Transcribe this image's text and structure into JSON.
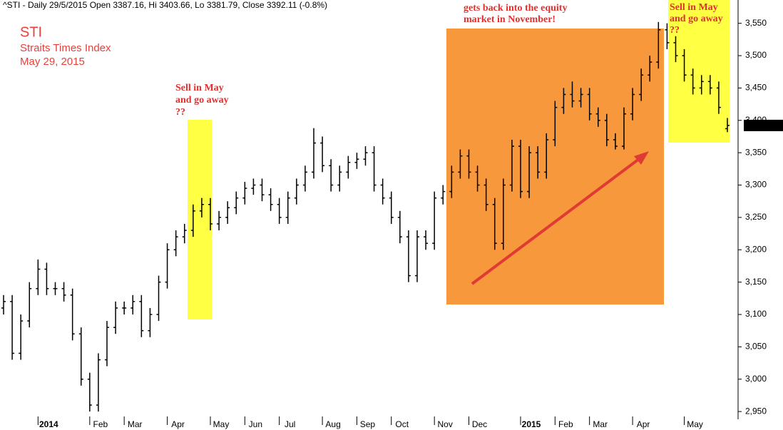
{
  "chart_data": {
    "type": "ohlc",
    "title": "^STI - Daily 29/5/2015 Open 3387.16, Hi 3403.66, Lo 3381.79, Close 3392.11 (-0.8%)",
    "symbol": "STI",
    "subtitle": "Straits Times Index",
    "date": "May 29, 2015",
    "annotations": [
      {
        "lines": [
          "Sell in May",
          "and go away",
          "??"
        ]
      },
      {
        "lines": [
          "gets back into the equity",
          "market in November!"
        ]
      },
      {
        "lines": [
          "Sell in May",
          "and go away",
          "??"
        ]
      }
    ],
    "last_value_label": "3,392.11",
    "color": "#000000",
    "categories": [
      null,
      null,
      null,
      null,
      "2014",
      null,
      null,
      null,
      null,
      null,
      "Feb",
      null,
      null,
      null,
      "Mar",
      null,
      null,
      null,
      null,
      "Apr",
      null,
      null,
      null,
      null,
      "May",
      null,
      null,
      null,
      "Jun",
      null,
      null,
      null,
      "Jul",
      null,
      null,
      null,
      null,
      "Aug",
      null,
      null,
      null,
      "Sep",
      null,
      null,
      null,
      "Oct",
      null,
      null,
      null,
      null,
      "Nov",
      null,
      null,
      null,
      "Dec",
      null,
      null,
      null,
      null,
      null,
      "2015",
      null,
      null,
      null,
      "Feb",
      null,
      null,
      null,
      "Mar",
      null,
      null,
      null,
      null,
      "Apr",
      null,
      null,
      null,
      null,
      null,
      "May",
      null,
      null,
      null,
      null,
      null
    ],
    "open": [
      3110,
      3120,
      3040,
      3090,
      3140,
      3170,
      3140,
      3140,
      3130,
      3070,
      3000,
      2960,
      3030,
      3080,
      3110,
      3110,
      3120,
      3075,
      3100,
      3150,
      3200,
      3220,
      3230,
      3260,
      3270,
      3240,
      3250,
      3265,
      3280,
      3295,
      3300,
      3285,
      3270,
      3250,
      3280,
      3300,
      3320,
      3365,
      3330,
      3300,
      3320,
      3335,
      3340,
      3350,
      3300,
      3280,
      3250,
      3220,
      3160,
      3220,
      3210,
      3280,
      3290,
      3320,
      3345,
      3320,
      3300,
      3270,
      3210,
      3300,
      3360,
      3290,
      3350,
      3320,
      3370,
      3420,
      3440,
      3430,
      3440,
      3410,
      3400,
      3370,
      3360,
      3410,
      3440,
      3470,
      3490,
      3540,
      3520,
      3500,
      3470,
      3450,
      3460,
      3450,
      3387.16
    ],
    "high": [
      3130,
      3130,
      3100,
      3150,
      3185,
      3180,
      3150,
      3150,
      3140,
      3080,
      3010,
      3040,
      3090,
      3120,
      3120,
      3130,
      3130,
      3110,
      3160,
      3210,
      3230,
      3240,
      3270,
      3280,
      3280,
      3260,
      3275,
      3290,
      3305,
      3310,
      3310,
      3295,
      3280,
      3290,
      3310,
      3330,
      3388,
      3375,
      3340,
      3330,
      3345,
      3350,
      3360,
      3360,
      3310,
      3290,
      3260,
      3230,
      3230,
      3230,
      3290,
      3300,
      3330,
      3355,
      3355,
      3330,
      3310,
      3280,
      3310,
      3370,
      3370,
      3360,
      3360,
      3380,
      3430,
      3450,
      3460,
      3450,
      3450,
      3420,
      3410,
      3380,
      3420,
      3450,
      3480,
      3500,
      3552,
      3550,
      3530,
      3510,
      3480,
      3470,
      3470,
      3460,
      3403.66
    ],
    "low": [
      3100,
      3030,
      3030,
      3080,
      3130,
      3130,
      3130,
      3120,
      3060,
      2990,
      2950,
      2950,
      3020,
      3070,
      3100,
      3100,
      3065,
      3065,
      3090,
      3140,
      3190,
      3210,
      3220,
      3250,
      3230,
      3230,
      3240,
      3255,
      3270,
      3285,
      3275,
      3260,
      3240,
      3240,
      3270,
      3290,
      3310,
      3320,
      3290,
      3290,
      3310,
      3325,
      3330,
      3290,
      3270,
      3240,
      3210,
      3150,
      3150,
      3200,
      3200,
      3270,
      3280,
      3310,
      3310,
      3290,
      3260,
      3200,
      3200,
      3290,
      3280,
      3280,
      3310,
      3310,
      3360,
      3410,
      3420,
      3420,
      3400,
      3390,
      3360,
      3355,
      3355,
      3400,
      3430,
      3460,
      3480,
      3510,
      3490,
      3460,
      3440,
      3440,
      3440,
      3410,
      3381.79
    ],
    "close": [
      3120,
      3040,
      3090,
      3140,
      3170,
      3140,
      3140,
      3130,
      3070,
      3000,
      2960,
      3030,
      3080,
      3110,
      3110,
      3120,
      3075,
      3100,
      3150,
      3200,
      3220,
      3230,
      3260,
      3270,
      3240,
      3250,
      3265,
      3280,
      3295,
      3300,
      3285,
      3270,
      3250,
      3280,
      3300,
      3320,
      3365,
      3330,
      3300,
      3320,
      3335,
      3340,
      3350,
      3300,
      3280,
      3250,
      3220,
      3160,
      3220,
      3210,
      3280,
      3290,
      3320,
      3345,
      3320,
      3300,
      3270,
      3210,
      3300,
      3360,
      3290,
      3350,
      3320,
      3370,
      3420,
      3440,
      3430,
      3440,
      3410,
      3400,
      3370,
      3360,
      3410,
      3440,
      3470,
      3490,
      3540,
      3520,
      3500,
      3470,
      3450,
      3460,
      3450,
      3420,
      3392.11
    ],
    "ylim": [
      2938,
      3586
    ],
    "yticks": [
      {
        "value": 2950,
        "label": "2,950"
      },
      {
        "value": 3000,
        "label": "3,000"
      },
      {
        "value": 3050,
        "label": "3,050"
      },
      {
        "value": 3100,
        "label": "3,100"
      },
      {
        "value": 3150,
        "label": "3,150"
      },
      {
        "value": 3200,
        "label": "3,200"
      },
      {
        "value": 3250,
        "label": "3,250"
      },
      {
        "value": 3300,
        "label": "3,300"
      },
      {
        "value": 3350,
        "label": "3,350"
      },
      {
        "value": 3400,
        "label": "3,400"
      },
      {
        "value": 3450,
        "label": "3,450"
      },
      {
        "value": 3500,
        "label": "3,500"
      },
      {
        "value": 3550,
        "label": "3,550"
      }
    ],
    "grid": false
  }
}
